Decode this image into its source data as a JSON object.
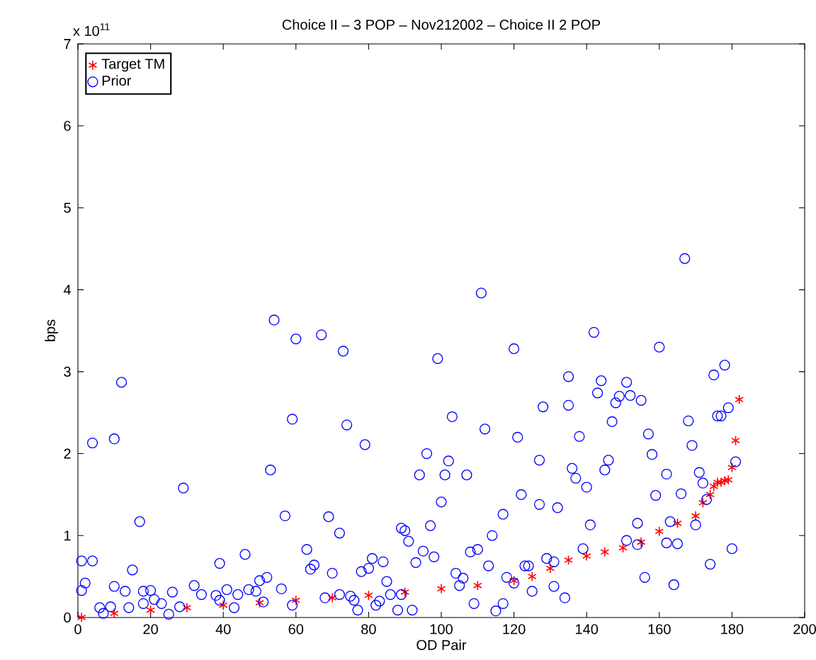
{
  "chart_data": {
    "type": "scatter",
    "title": "Choice II – 3 POP – Nov212002 – Choice II 2 POP",
    "xlabel": "OD Pair",
    "ylabel": "bps",
    "annotations": [
      "x 10$^{11}$"
    ],
    "xlim": [
      0,
      200
    ],
    "xticks": [
      0,
      20,
      40,
      60,
      80,
      100,
      120,
      140,
      160,
      180,
      200
    ],
    "ylim": [
      0,
      7
    ],
    "yticks": [
      0,
      1,
      2,
      3,
      4,
      5,
      6,
      7
    ],
    "grid": false,
    "legend": "top left",
    "series": [
      {
        "name": "Target TM",
        "color": "#ff0000",
        "marker": "cross",
        "x": [
          1,
          10,
          20,
          30,
          40,
          50,
          60,
          70,
          80,
          90,
          100,
          110,
          120,
          125,
          130,
          135,
          140,
          145,
          150,
          155,
          160,
          165,
          170,
          172,
          174,
          175,
          176,
          177,
          178,
          179,
          180,
          181,
          182
        ],
        "values": [
          0.0,
          0.05,
          0.09,
          0.12,
          0.15,
          0.18,
          0.21,
          0.24,
          0.27,
          0.31,
          0.35,
          0.39,
          0.45,
          0.5,
          0.6,
          0.7,
          0.75,
          0.8,
          0.85,
          0.92,
          1.05,
          1.15,
          1.24,
          1.4,
          1.5,
          1.6,
          1.65,
          1.65,
          1.67,
          1.68,
          1.83,
          2.16,
          2.66
        ]
      },
      {
        "name": "Prior",
        "color": "#0000ff",
        "marker": "circle",
        "x": [
          1,
          4,
          1,
          2,
          4,
          10,
          12,
          10,
          13,
          15,
          17,
          29,
          6,
          9,
          7,
          14,
          18,
          18,
          20,
          21,
          23,
          26,
          25,
          28,
          32,
          34,
          38,
          39,
          39,
          41,
          43,
          44,
          46,
          47,
          49,
          50,
          51,
          52,
          53,
          54,
          56,
          57,
          59,
          60,
          59,
          63,
          64,
          65,
          67,
          69,
          70,
          72,
          73,
          74,
          72,
          68,
          75,
          76,
          77,
          78,
          79,
          80,
          81,
          82,
          83,
          84,
          85,
          86,
          88,
          89,
          89,
          90,
          91,
          92,
          93,
          94,
          95,
          96,
          97,
          98,
          99,
          100,
          101,
          102,
          103,
          104,
          105,
          106,
          107,
          108,
          109,
          110,
          111,
          112,
          113,
          114,
          115,
          117,
          117,
          118,
          120,
          120,
          121,
          122,
          123,
          124,
          125,
          127,
          127,
          128,
          129,
          131,
          131,
          132,
          134,
          135,
          135,
          136,
          137,
          139,
          140,
          138,
          142,
          141,
          143,
          144,
          145,
          146,
          147,
          148,
          149,
          151,
          152,
          151,
          154,
          154,
          155,
          156,
          157,
          158,
          159,
          160,
          162,
          162,
          163,
          164,
          165,
          166,
          167,
          168,
          169,
          170,
          171,
          172,
          173,
          174,
          175,
          176,
          177,
          178,
          179,
          180,
          181
        ],
        "values": [
          0.69,
          0.69,
          0.33,
          0.42,
          2.13,
          2.18,
          2.87,
          0.38,
          0.32,
          0.58,
          1.17,
          1.58,
          0.12,
          0.13,
          0.05,
          0.12,
          0.17,
          0.32,
          0.33,
          0.22,
          0.17,
          0.31,
          0.04,
          0.13,
          0.39,
          0.28,
          0.27,
          0.66,
          0.21,
          0.34,
          0.12,
          0.28,
          0.77,
          0.34,
          0.32,
          0.45,
          0.19,
          0.49,
          1.8,
          3.63,
          0.35,
          1.24,
          2.42,
          3.4,
          0.15,
          0.83,
          0.59,
          0.64,
          3.45,
          1.23,
          0.54,
          1.03,
          3.25,
          2.35,
          0.28,
          0.24,
          0.26,
          0.21,
          0.09,
          0.56,
          2.11,
          0.6,
          0.72,
          0.15,
          0.2,
          0.68,
          0.44,
          0.28,
          0.09,
          0.28,
          1.09,
          1.06,
          0.93,
          0.09,
          0.67,
          1.74,
          0.81,
          2.0,
          1.12,
          0.74,
          3.16,
          1.41,
          1.74,
          1.91,
          2.45,
          0.54,
          0.39,
          0.48,
          1.74,
          0.8,
          0.17,
          0.83,
          3.96,
          2.3,
          0.63,
          1.0,
          0.08,
          1.26,
          0.17,
          0.49,
          0.42,
          3.28,
          2.2,
          1.5,
          0.63,
          0.63,
          0.32,
          1.92,
          1.38,
          2.57,
          0.72,
          0.38,
          0.68,
          1.34,
          0.24,
          2.59,
          2.94,
          1.82,
          1.7,
          0.84,
          1.59,
          2.21,
          3.48,
          1.13,
          2.74,
          2.89,
          1.8,
          1.92,
          2.39,
          2.62,
          2.7,
          0.94,
          2.71,
          2.87,
          0.89,
          1.15,
          2.65,
          0.49,
          2.24,
          1.99,
          1.49,
          3.3,
          1.75,
          0.91,
          1.17,
          0.4,
          0.9,
          1.51,
          4.38,
          2.4,
          2.1,
          1.13,
          1.77,
          1.64,
          1.44,
          0.65,
          2.96,
          2.46,
          2.46,
          3.08,
          2.56,
          0.84,
          1.9
        ]
      }
    ]
  }
}
